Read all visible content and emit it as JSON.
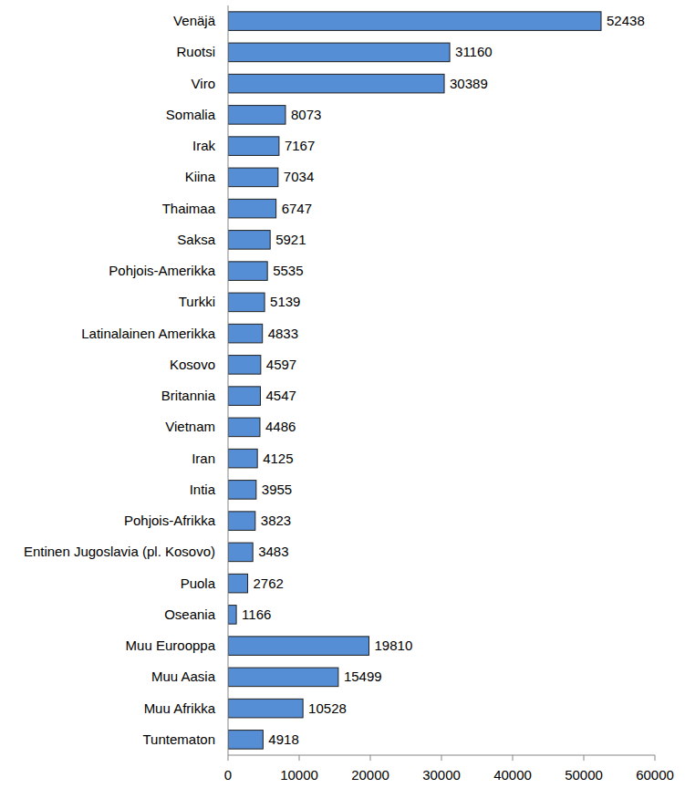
{
  "chart_data": {
    "type": "bar",
    "orientation": "horizontal",
    "categories": [
      "Venäjä",
      "Ruotsi",
      "Viro",
      "Somalia",
      "Irak",
      "Kiina",
      "Thaimaa",
      "Saksa",
      "Pohjois-Amerikka",
      "Turkki",
      "Latinalainen Amerikka",
      "Kosovo",
      "Britannia",
      "Vietnam",
      "Iran",
      "Intia",
      "Pohjois-Afrikka",
      "Entinen Jugoslavia (pl. Kosovo)",
      "Puola",
      "Oseania",
      "Muu Eurooppa",
      "Muu Aasia",
      "Muu Afrikka",
      "Tuntematon"
    ],
    "values": [
      52438,
      31160,
      30389,
      8073,
      7167,
      7034,
      6747,
      5921,
      5535,
      5139,
      4833,
      4597,
      4547,
      4486,
      4125,
      3955,
      3823,
      3483,
      2762,
      1166,
      19810,
      15499,
      10528,
      4918
    ],
    "color": "#558ed5",
    "xlim": [
      0,
      60000
    ],
    "xticks": [
      0,
      10000,
      20000,
      30000,
      40000,
      50000,
      60000
    ],
    "grid": false,
    "data_labels": true
  }
}
